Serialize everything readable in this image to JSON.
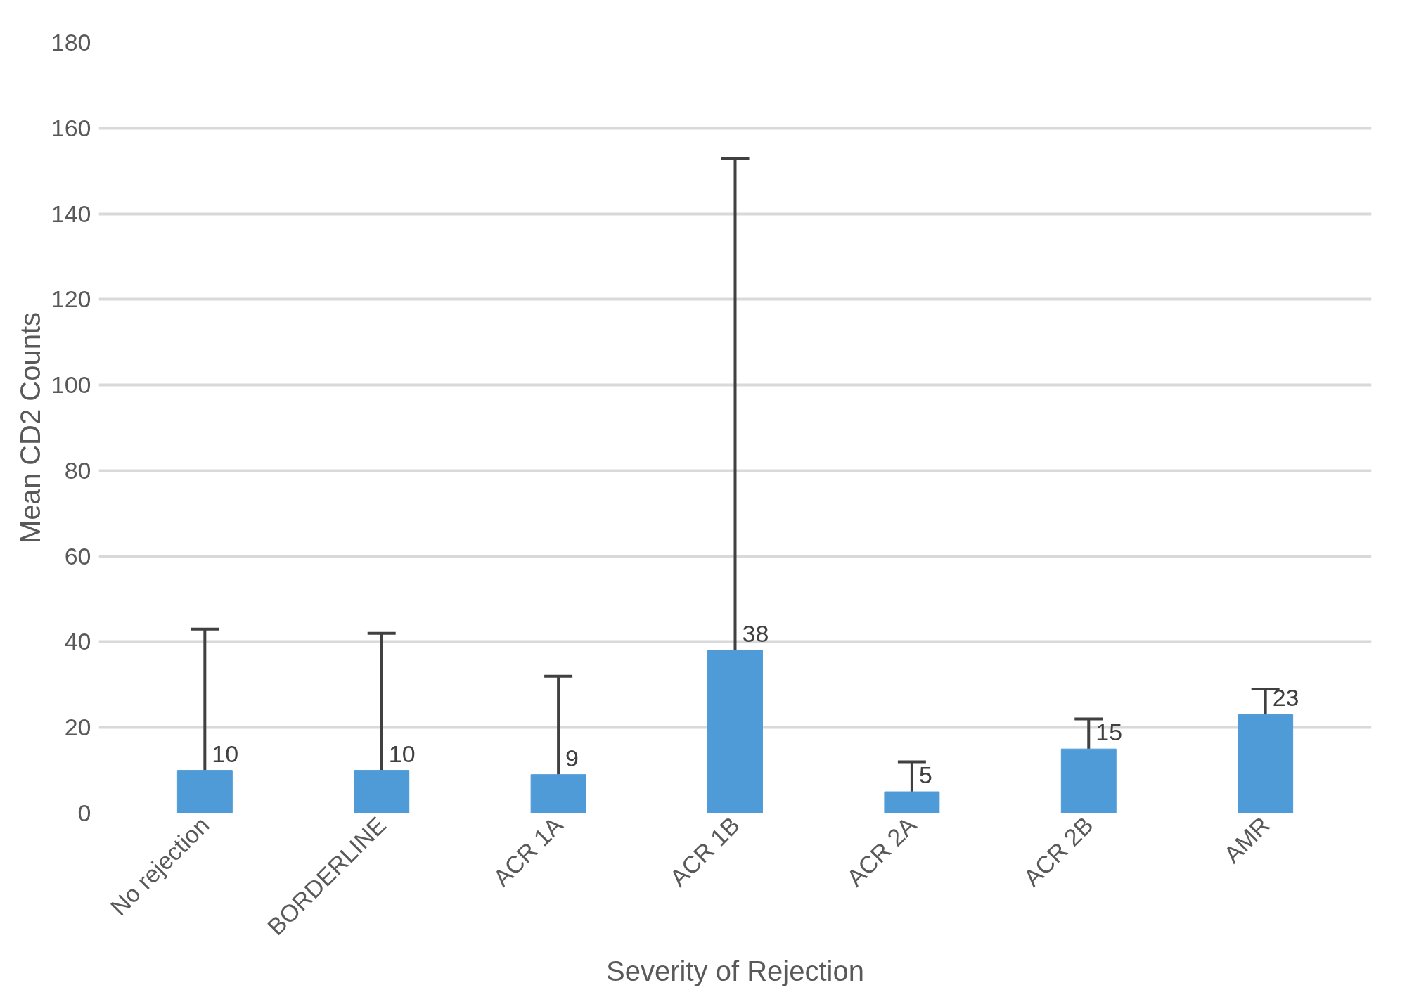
{
  "chart_data": {
    "type": "bar",
    "xlabel": "Severity of Rejection",
    "ylabel": "Mean CD2 Counts",
    "categories": [
      "No rejection",
      "BORDERLINE",
      "ACR 1A",
      "ACR 1B",
      "ACR 2A",
      "ACR 2B",
      "AMR"
    ],
    "values": [
      10,
      10,
      9,
      38,
      5,
      15,
      23
    ],
    "errors": [
      [
        10,
        43
      ],
      [
        10,
        42
      ],
      [
        9,
        32
      ],
      [
        38,
        153
      ],
      [
        5,
        12
      ],
      [
        15,
        22
      ],
      [
        23,
        29
      ]
    ],
    "color": "#4f9bd8",
    "data_labels": true,
    "grid": "y",
    "ylim": [
      0,
      180
    ],
    "yticks": [
      0,
      20,
      40,
      60,
      80,
      100,
      120,
      140,
      160,
      180
    ]
  }
}
